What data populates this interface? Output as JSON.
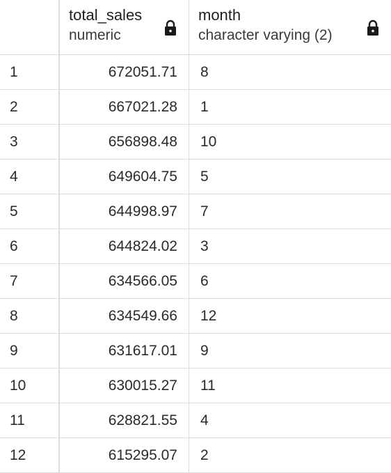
{
  "columns": [
    {
      "name": "total_sales",
      "type": "numeric"
    },
    {
      "name": "month",
      "type": "character varying (2)"
    }
  ],
  "rows": [
    {
      "n": "1",
      "total_sales": "672051.71",
      "month": "8"
    },
    {
      "n": "2",
      "total_sales": "667021.28",
      "month": "1"
    },
    {
      "n": "3",
      "total_sales": "656898.48",
      "month": "10"
    },
    {
      "n": "4",
      "total_sales": "649604.75",
      "month": "5"
    },
    {
      "n": "5",
      "total_sales": "644998.97",
      "month": "7"
    },
    {
      "n": "6",
      "total_sales": "644824.02",
      "month": "3"
    },
    {
      "n": "7",
      "total_sales": "634566.05",
      "month": "6"
    },
    {
      "n": "8",
      "total_sales": "634549.66",
      "month": "12"
    },
    {
      "n": "9",
      "total_sales": "631617.01",
      "month": "9"
    },
    {
      "n": "10",
      "total_sales": "630015.27",
      "month": "11"
    },
    {
      "n": "11",
      "total_sales": "628821.55",
      "month": "4"
    },
    {
      "n": "12",
      "total_sales": "615295.07",
      "month": "2"
    }
  ],
  "icons": {
    "column_lock": "lock-icon"
  },
  "colors": {
    "grid_line": "#dedede",
    "text": "#222222",
    "background": "#ffffff"
  }
}
